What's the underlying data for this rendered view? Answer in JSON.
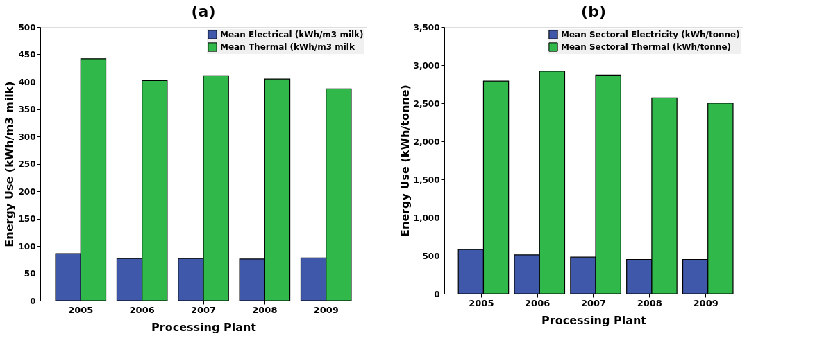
{
  "chart_data": [
    {
      "type": "bar",
      "title": "(a)",
      "xlabel": "Processing Plant",
      "ylabel": "Energy Use (kWh/m3 milk)",
      "categories": [
        "2005",
        "2006",
        "2007",
        "2008",
        "2009"
      ],
      "series": [
        {
          "name": "Mean Electrical (kWh/m3 milk)",
          "color": "#3f58aa",
          "values": [
            86,
            77,
            77,
            76,
            78
          ]
        },
        {
          "name": "Mean Thermal (kWh/m3 milk",
          "color": "#30b84a",
          "values": [
            442,
            402,
            411,
            405,
            387
          ]
        }
      ],
      "ylim": [
        0,
        500
      ],
      "yticks": [
        0,
        50,
        100,
        150,
        200,
        250,
        300,
        350,
        400,
        450,
        500
      ],
      "grid": false,
      "legend": "top right"
    },
    {
      "type": "bar",
      "title": "(b)",
      "xlabel": "Processing Plant",
      "ylabel": "Energy Use (kWh/tonne)",
      "categories": [
        "2005",
        "2006",
        "2007",
        "2008",
        "2009"
      ],
      "series": [
        {
          "name": "Mean Sectoral Electricity (kWh/tonne)",
          "color": "#3f58aa",
          "values": [
            580,
            510,
            480,
            450,
            450
          ]
        },
        {
          "name": "Mean Sectoral Thermal (kWh/tonne)",
          "color": "#30b84a",
          "values": [
            2790,
            2920,
            2870,
            2570,
            2500
          ]
        }
      ],
      "ylim": [
        0,
        3500
      ],
      "yticks": [
        0,
        {
          "value": 500,
          "label": "500"
        },
        {
          "value": 1000,
          "label": "1,000"
        },
        {
          "value": 1500,
          "label": "1,500"
        },
        {
          "value": 2000,
          "label": "2,000"
        },
        {
          "value": 2500,
          "label": "2,500"
        },
        {
          "value": 3000,
          "label": "3,000"
        },
        {
          "value": 3500,
          "label": "3,500"
        }
      ],
      "grid": false,
      "legend": "top right"
    }
  ]
}
